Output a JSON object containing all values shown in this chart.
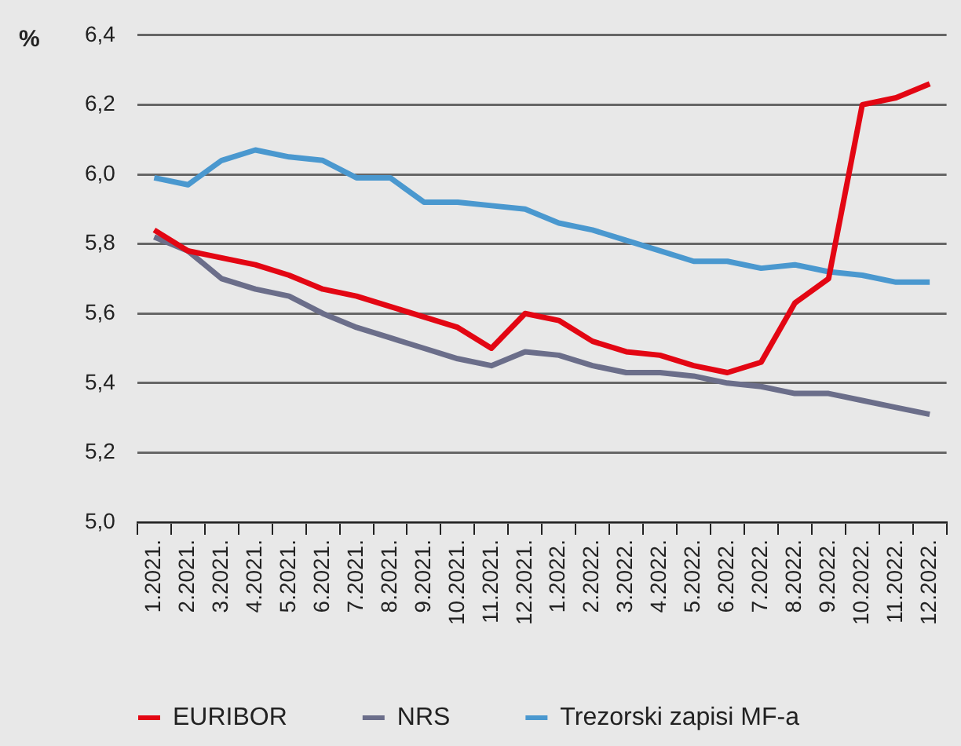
{
  "chart_data": {
    "type": "line",
    "ylabel": "%",
    "categories": [
      "1.2021.",
      "2.2021.",
      "3.2021.",
      "4.2021.",
      "5.2021.",
      "6.2021.",
      "7.2021.",
      "8.2021.",
      "9.2021.",
      "10.2021.",
      "11.2021.",
      "12.2021.",
      "1.2022.",
      "2.2022.",
      "3.2022.",
      "4.2022.",
      "5.2022.",
      "6.2022.",
      "7.2022.",
      "8.2022.",
      "9.2022.",
      "10.2022.",
      "11.2022.",
      "12.2022."
    ],
    "series": [
      {
        "name": "EURIBOR",
        "color": "#e30613",
        "values": [
          5.84,
          5.78,
          5.76,
          5.74,
          5.71,
          5.67,
          5.65,
          5.62,
          5.59,
          5.56,
          5.5,
          5.6,
          5.58,
          5.52,
          5.49,
          5.48,
          5.45,
          5.43,
          5.46,
          5.63,
          5.7,
          6.2,
          6.22,
          6.26
        ]
      },
      {
        "name": "NRS",
        "color": "#6b6e8a",
        "values": [
          5.82,
          5.78,
          5.7,
          5.67,
          5.65,
          5.6,
          5.56,
          5.53,
          5.5,
          5.47,
          5.45,
          5.49,
          5.48,
          5.45,
          5.43,
          5.43,
          5.42,
          5.4,
          5.39,
          5.37,
          5.37,
          5.35,
          5.33,
          5.31
        ]
      },
      {
        "name": "Trezorski zapisi MF-a",
        "color": "#4a98cf",
        "values": [
          5.99,
          5.97,
          6.04,
          6.07,
          6.05,
          6.04,
          5.99,
          5.99,
          5.92,
          5.92,
          5.91,
          5.9,
          5.86,
          5.84,
          5.81,
          5.78,
          5.75,
          5.75,
          5.73,
          5.74,
          5.72,
          5.71,
          5.69,
          5.69
        ]
      }
    ],
    "ylim": [
      5.0,
      6.4
    ],
    "yticks": [
      {
        "value": 5.0,
        "label": "5,0"
      },
      {
        "value": 5.2,
        "label": "5,2"
      },
      {
        "value": 5.4,
        "label": "5,4"
      },
      {
        "value": 5.6,
        "label": "5,6"
      },
      {
        "value": 5.8,
        "label": "5,8"
      },
      {
        "value": 6.0,
        "label": "6,0"
      },
      {
        "value": 6.2,
        "label": "6,2"
      },
      {
        "value": 6.4,
        "label": "6,4"
      }
    ],
    "grid": "y",
    "legend": "bottom left",
    "marker": "none",
    "line_style": "solid"
  }
}
